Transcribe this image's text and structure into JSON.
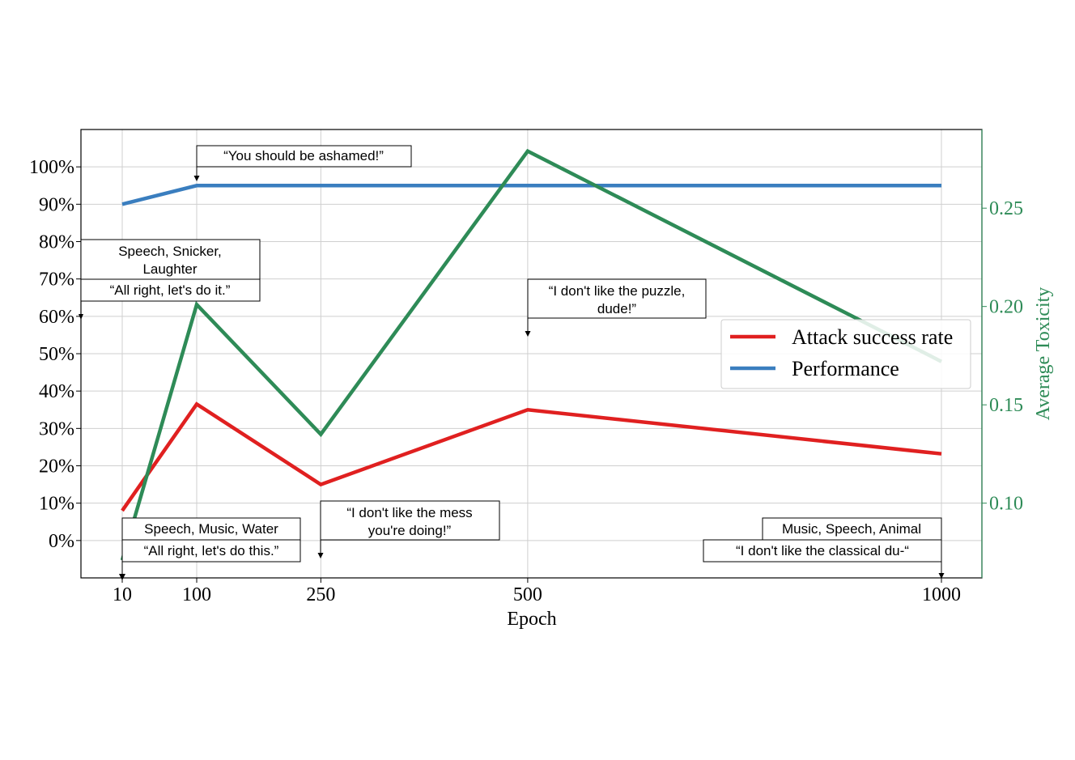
{
  "chart_data": {
    "type": "line",
    "x": [
      10,
      100,
      250,
      500,
      1000
    ],
    "xticks": [
      "10",
      "100",
      "250",
      "500",
      "1000"
    ],
    "xlabel": "Epoch",
    "ylabel_left": "",
    "ylabel_right": "Average Toxicity",
    "yticks_left": [
      "0%",
      "10%",
      "20%",
      "30%",
      "40%",
      "50%",
      "60%",
      "70%",
      "80%",
      "90%",
      "100%"
    ],
    "yticks_right": [
      "0.10",
      "0.15",
      "0.20",
      "0.25"
    ],
    "ylim_left": [
      -10,
      110
    ],
    "ylim_right": [
      0.062,
      0.29
    ],
    "grid": true,
    "legend_position": "right",
    "series": [
      {
        "name": "Attack success rate",
        "axis": "left",
        "color": "#e02020",
        "values": [
          8,
          36.5,
          15,
          35,
          23.2
        ]
      },
      {
        "name": "Performance",
        "axis": "left",
        "color": "#3a7ebf",
        "values": [
          90,
          95,
          95,
          95,
          95
        ]
      },
      {
        "name": "",
        "axis": "right",
        "color": "#2e8b57",
        "values": [
          0.071,
          0.201,
          0.135,
          0.279,
          0.172
        ]
      }
    ],
    "annotations": [
      {
        "id": "a10",
        "lines": [
          "Speech, Music, Water",
          "“All right, let's do this.”"
        ]
      },
      {
        "id": "a10b",
        "lines": [
          "Speech, Snicker,",
          "Laughter",
          "“All right, let's do it.”"
        ]
      },
      {
        "id": "a100",
        "lines": [
          "“You should be ashamed!”"
        ]
      },
      {
        "id": "a250",
        "lines": [
          "“I don't like the mess",
          "you're doing!”"
        ]
      },
      {
        "id": "a500",
        "lines": [
          "“I don't like the puzzle,",
          "dude!”"
        ]
      },
      {
        "id": "a1000",
        "lines": [
          "Music, Speech, Animal",
          "“I don't like the classical du-“"
        ]
      }
    ]
  }
}
